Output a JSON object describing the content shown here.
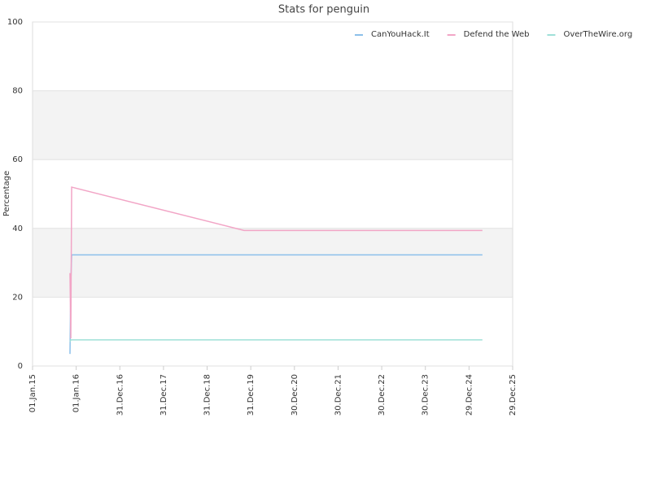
{
  "chart_data": {
    "type": "line",
    "title": "Stats for penguin",
    "y_label": "Percentage",
    "xlim": [
      "2015-01-01",
      "2025-12-29"
    ],
    "xticks": [
      {
        "value": "2015-01-01",
        "label": "01.Jan.15"
      },
      {
        "value": "2016-01-01",
        "label": "01.Jan.16"
      },
      {
        "value": "2016-12-31",
        "label": "31.Dec.16"
      },
      {
        "value": "2017-12-31",
        "label": "31.Dec.17"
      },
      {
        "value": "2018-12-31",
        "label": "31.Dec.18"
      },
      {
        "value": "2019-12-31",
        "label": "31.Dec.19"
      },
      {
        "value": "2020-12-30",
        "label": "30.Dec.20"
      },
      {
        "value": "2021-12-30",
        "label": "30.Dec.21"
      },
      {
        "value": "2022-12-30",
        "label": "30.Dec.22"
      },
      {
        "value": "2023-12-30",
        "label": "30.Dec.23"
      },
      {
        "value": "2024-12-29",
        "label": "29.Dec.24"
      },
      {
        "value": "2025-12-29",
        "label": "29.Dec.25"
      }
    ],
    "ylim": [
      0,
      100
    ],
    "yticks": [
      0,
      20,
      40,
      60,
      80,
      100
    ],
    "grid": true,
    "legend": "top-right",
    "series": [
      {
        "name": "CanYouHack.It",
        "color": "#8cc0ea",
        "x": [
          "2015-11-10",
          "2015-11-17",
          "2015-11-24",
          "2025-04-20"
        ],
        "values": [
          3.5,
          24,
          32.3,
          32.3
        ]
      },
      {
        "name": "Defend the Web",
        "color": "#f2a5c6",
        "x": [
          "2015-11-10",
          "2015-11-17",
          "2015-11-24",
          "2019-11-05",
          "2025-04-20"
        ],
        "values": [
          27,
          8,
          52,
          39.4,
          39.4
        ]
      },
      {
        "name": "OverTheWire.org",
        "color": "#9fe0d8",
        "x": [
          "2015-11-10",
          "2015-11-17",
          "2025-04-20"
        ],
        "values": [
          7,
          7.6,
          7.6
        ]
      }
    ]
  }
}
